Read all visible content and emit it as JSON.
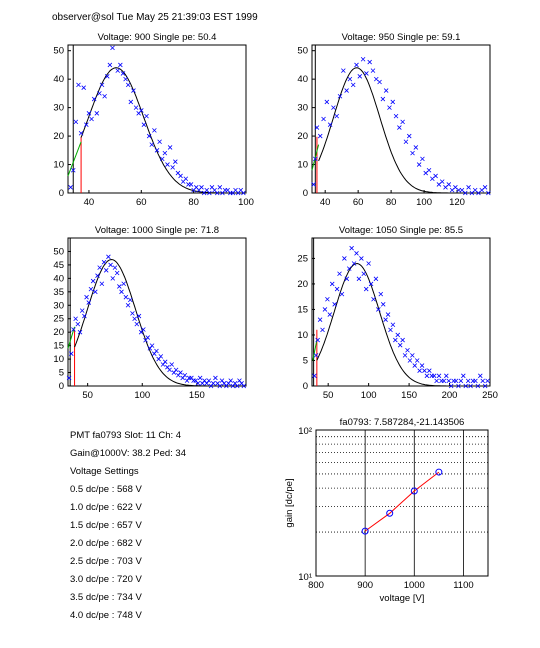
{
  "header": {
    "text": "observer@sol Tue May 25 21:39:03 EST 1999"
  },
  "info": {
    "pmt_line": "PMT fa0793 Slot: 11 Ch: 4",
    "gain_line": "Gain@1000V: 38.2 Ped: 34",
    "settings_title": "Voltage Settings",
    "settings": [
      "0.5 dc/pe : 568 V",
      "1.0 dc/pe : 622 V",
      "1.5 dc/pe : 657 V",
      "2.0 dc/pe : 682 V",
      "2.5 dc/pe : 703 V",
      "3.0 dc/pe : 720 V",
      "3.5 dc/pe : 734 V",
      "4.0 dc/pe : 748 V"
    ]
  },
  "colors": {
    "data": "#0000ff",
    "fit": "#000000",
    "ped_fit": "#00aa00",
    "cut": "#ff0000",
    "gain_line": "#ff0000"
  },
  "chart_data": [
    {
      "type": "scatter",
      "title": "Voltage: 900 Single pe: 50.4",
      "xlim": [
        32,
        100
      ],
      "ylim": [
        0,
        52
      ],
      "xticks": [
        40,
        60,
        80,
        100
      ],
      "yticks": [
        0,
        10,
        20,
        30,
        40,
        50
      ],
      "pedestal_x": 34,
      "cut_x": 37,
      "fit": {
        "amplitude": 44,
        "mean": 50.4,
        "sigma": 10.5
      },
      "ped_fit": {
        "x": [
          32,
          37
        ],
        "y": [
          6,
          18
        ]
      },
      "points": {
        "x": [
          33,
          34,
          35,
          36,
          37,
          38,
          39,
          40,
          41,
          42,
          43,
          44,
          45,
          46,
          47,
          48,
          49,
          50,
          51,
          52,
          53,
          54,
          55,
          56,
          57,
          58,
          59,
          60,
          61,
          62,
          63,
          64,
          65,
          66,
          67,
          68,
          69,
          70,
          71,
          72,
          73,
          74,
          75,
          76,
          77,
          78,
          79,
          80,
          81,
          82,
          83,
          84,
          85,
          86,
          87,
          88,
          89,
          90,
          91,
          92,
          93,
          94,
          95,
          96,
          97,
          98,
          99
        ],
        "y": [
          2,
          8,
          25,
          38,
          21,
          37,
          24,
          28,
          26,
          33,
          28,
          35,
          38,
          34,
          41,
          45,
          51,
          53,
          43,
          45,
          42,
          40,
          38,
          32,
          36,
          30,
          28,
          29,
          24,
          27,
          20,
          17,
          22,
          15,
          18,
          12,
          14,
          10,
          16,
          9,
          11,
          7,
          6,
          4,
          5,
          3,
          3,
          1,
          2,
          1,
          2,
          0,
          1,
          0,
          2,
          1,
          0,
          2,
          0,
          1,
          1,
          0,
          0,
          1,
          0,
          1,
          0
        ]
      }
    },
    {
      "type": "scatter",
      "title": "Voltage: 950 Single pe: 59.1",
      "xlim": [
        32,
        140
      ],
      "ylim": [
        0,
        52
      ],
      "xticks": [
        40,
        60,
        80,
        100,
        120
      ],
      "yticks": [
        0,
        10,
        20,
        30,
        40,
        50
      ],
      "pedestal_x": 34,
      "cut_x": 35,
      "fit": {
        "amplitude": 44,
        "mean": 59.1,
        "sigma": 14
      },
      "ped_fit": {
        "x": [
          32,
          36
        ],
        "y": [
          8,
          17
        ]
      },
      "points": {
        "x": [
          33,
          34,
          35,
          37,
          39,
          41,
          43,
          45,
          47,
          49,
          51,
          53,
          55,
          57,
          59,
          61,
          63,
          65,
          67,
          69,
          71,
          73,
          75,
          77,
          79,
          81,
          83,
          85,
          87,
          89,
          91,
          93,
          95,
          97,
          99,
          101,
          103,
          105,
          107,
          109,
          111,
          113,
          115,
          117,
          119,
          121,
          123,
          125,
          127,
          129,
          131,
          133,
          135,
          137,
          139
        ],
        "y": [
          3,
          12,
          23,
          20,
          26,
          32,
          24,
          30,
          27,
          34,
          43,
          36,
          40,
          38,
          45,
          41,
          47,
          42,
          46,
          43,
          40,
          39,
          33,
          36,
          30,
          32,
          27,
          23,
          25,
          18,
          20,
          14,
          16,
          10,
          12,
          7,
          8,
          5,
          6,
          3,
          4,
          2,
          3,
          1,
          2,
          1,
          1,
          0,
          2,
          0,
          1,
          0,
          1,
          2,
          0
        ]
      }
    },
    {
      "type": "scatter",
      "title": "Voltage: 1000 Single pe: 71.8",
      "xlim": [
        32,
        195
      ],
      "ylim": [
        0,
        55
      ],
      "xticks": [
        50,
        100,
        150
      ],
      "yticks": [
        0,
        5,
        10,
        15,
        20,
        25,
        30,
        35,
        40,
        45,
        50
      ],
      "pedestal_x": 34,
      "cut_x": 38,
      "fit": {
        "amplitude": 47,
        "mean": 71.8,
        "sigma": 22
      },
      "ped_fit": {
        "x": [
          32,
          38
        ],
        "y": [
          14,
          22
        ]
      },
      "points": {
        "x": [
          33,
          35,
          37,
          39,
          41,
          43,
          45,
          47,
          49,
          51,
          53,
          55,
          57,
          59,
          61,
          63,
          65,
          67,
          69,
          71,
          73,
          75,
          77,
          79,
          81,
          83,
          85,
          87,
          89,
          91,
          93,
          95,
          97,
          99,
          101,
          103,
          105,
          107,
          109,
          111,
          113,
          115,
          117,
          119,
          121,
          123,
          125,
          127,
          129,
          131,
          133,
          135,
          137,
          139,
          141,
          143,
          145,
          147,
          149,
          151,
          153,
          155,
          157,
          159,
          161,
          163,
          165,
          167,
          169,
          171,
          173,
          175,
          177,
          179,
          181,
          183,
          185,
          187,
          189,
          191,
          193
        ],
        "y": [
          3,
          12,
          21,
          25,
          23,
          20,
          28,
          26,
          33,
          31,
          36,
          39,
          35,
          41,
          44,
          38,
          46,
          43,
          48,
          45,
          40,
          44,
          42,
          37,
          35,
          38,
          33,
          30,
          32,
          27,
          25,
          23,
          26,
          20,
          21,
          17,
          18,
          14,
          15,
          12,
          13,
          10,
          11,
          8,
          9,
          7,
          6,
          8,
          5,
          6,
          4,
          5,
          3,
          4,
          2,
          3,
          3,
          2,
          2,
          1,
          3,
          1,
          2,
          1,
          2,
          0,
          1,
          3,
          1,
          0,
          2,
          1,
          0,
          1,
          2,
          0,
          1,
          0,
          2,
          1,
          0
        ]
      }
    },
    {
      "type": "scatter",
      "title": "Voltage: 1050 Single pe: 85.5",
      "xlim": [
        30,
        250
      ],
      "ylim": [
        0,
        29
      ],
      "xticks": [
        50,
        100,
        150,
        200,
        250
      ],
      "yticks": [
        0,
        5,
        10,
        15,
        20,
        25
      ],
      "pedestal_x": 32,
      "cut_x": 36,
      "fit": {
        "amplitude": 24,
        "mean": 85.5,
        "sigma": 28
      },
      "ped_fit": {
        "x": [
          31,
          36
        ],
        "y": [
          5,
          9
        ]
      },
      "points": {
        "x": [
          33,
          35,
          37,
          40,
          43,
          46,
          49,
          52,
          55,
          58,
          61,
          64,
          67,
          70,
          73,
          76,
          79,
          82,
          85,
          88,
          91,
          94,
          97,
          100,
          103,
          106,
          109,
          112,
          115,
          118,
          121,
          124,
          127,
          130,
          133,
          136,
          139,
          142,
          145,
          148,
          151,
          154,
          157,
          160,
          163,
          166,
          169,
          172,
          175,
          178,
          181,
          184,
          187,
          190,
          193,
          196,
          199,
          202,
          205,
          208,
          211,
          214,
          217,
          220,
          223,
          226,
          229,
          232,
          235,
          238,
          241,
          244,
          247
        ],
        "y": [
          2,
          6,
          9,
          13,
          11,
          15,
          17,
          14,
          20,
          16,
          19,
          22,
          18,
          25,
          21,
          23,
          27,
          24,
          26,
          21,
          25,
          22,
          19,
          24,
          20,
          17,
          21,
          15,
          18,
          16,
          13,
          14,
          11,
          12,
          9,
          10,
          8,
          9,
          6,
          7,
          5,
          6,
          4,
          5,
          3,
          4,
          3,
          2,
          3,
          2,
          2,
          1,
          2,
          1,
          1,
          2,
          1,
          0,
          1,
          1,
          0,
          1,
          2,
          0,
          1,
          0,
          1,
          1,
          0,
          2,
          1,
          0,
          1
        ]
      }
    },
    {
      "type": "line",
      "title": "fa0793: 7.587284,-21.143506",
      "xlabel": "voltage [V]",
      "ylabel": "gain [dc/pe]",
      "xlim": [
        800,
        1150
      ],
      "ylim": [
        10,
        100
      ],
      "yscale": "log",
      "xticks": [
        800,
        900,
        1000,
        1100
      ],
      "ytick_labels": [
        "10¹",
        "10²"
      ],
      "grid": true,
      "x": [
        900,
        950,
        1000,
        1050
      ],
      "y": [
        20.3,
        26.9,
        38.2,
        51.5
      ]
    }
  ]
}
